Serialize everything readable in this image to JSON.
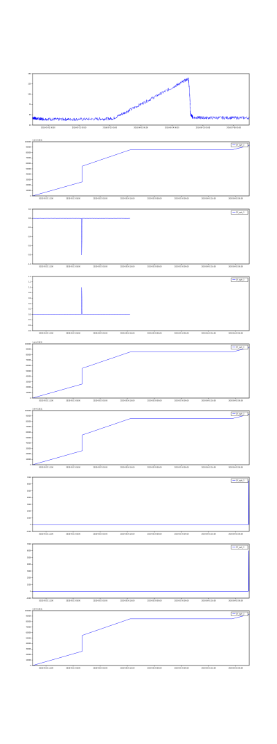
{
  "colors": {
    "series": "#0000ff",
    "axis": "#000000",
    "grid": "#999999"
  },
  "chart_data": [
    {
      "type": "line",
      "ylim": [
        10,
        180
      ],
      "ytick_labels": [
        "10",
        "40",
        "70",
        "100",
        "130",
        "160"
      ],
      "xtick_labels": [
        "2016-05-01 00:00",
        "2016-05-12 00:00",
        "2016-05-23 00:00",
        "2016-06-03 00:00",
        "2016-06-14 00:00",
        "2016-06-25 00:00",
        "2016-07-06 00:00"
      ],
      "legend": "",
      "series": [
        {
          "x": [
            0,
            0.02,
            0.05,
            0.12,
            0.2,
            0.3,
            0.37,
            0.45,
            0.55,
            0.65,
            0.72,
            0.73,
            0.74,
            0.8,
            0.9,
            1.0
          ],
          "values": [
            34,
            31,
            30,
            29,
            29,
            30,
            31,
            60,
            98,
            136,
            164,
            45,
            35,
            34,
            34,
            34
          ],
          "noise": 1.2
        }
      ]
    },
    {
      "type": "line",
      "ylim": [
        0,
        100000
      ],
      "corner_label": "1e6+2.5611",
      "ytick_labels": [
        "0",
        "10000",
        "20000",
        "30000",
        "40000",
        "50000",
        "60000",
        "70000",
        "80000",
        "90000",
        "100000"
      ],
      "xtick_labels": [
        "2020-05-21 12:00",
        "2020-05-23 08:00",
        "2020-05-25 00:00",
        "2020-05-26 16:00",
        "2020-05-28 08:00",
        "2020-05-30 00:00",
        "2020-06-01 16:00",
        "2020-06-03 08:00"
      ],
      "legend": "C4_sgle_3",
      "series": [
        {
          "x": [
            0,
            0.23,
            0.23,
            0.45,
            0.45,
            0.92,
            1.0
          ],
          "values": [
            0,
            26000,
            55000,
            85000,
            85000,
            85000,
            93000
          ],
          "noise": 0
        }
      ]
    },
    {
      "type": "line",
      "ylim": [
        -1.0,
        0.2
      ],
      "ytick_labels": [
        "-1.0",
        "-0.8",
        "-0.6",
        "-0.4",
        "-0.2",
        "0.0",
        "0.2"
      ],
      "xtick_labels": [
        "2020-05-21 12:00",
        "2020-05-23 08:00",
        "2020-05-25 00:00",
        "2020-05-26 16:00",
        "2020-05-28 08:00",
        "2020-05-30 00:00",
        "2020-06-01 16:00",
        "2020-06-03 08:00"
      ],
      "legend": "C4_sgle_3",
      "series": [
        {
          "x": [
            0,
            0.22,
            0.225,
            0.226,
            0.23,
            0.45
          ],
          "values": [
            0,
            0,
            0,
            -0.8,
            0,
            0
          ],
          "noise": 0.03
        }
      ]
    },
    {
      "type": "line",
      "ylim": [
        -0.6,
        1.4
      ],
      "ytick_labels": [
        "-0.6",
        "-0.4",
        "-0.2",
        "0.0",
        "0.2",
        "0.4",
        "0.6",
        "0.8",
        "1.0",
        "1.2",
        "1.4"
      ],
      "xtick_labels": [
        "2020-05-21 12:00",
        "2020-05-23 08:00",
        "2020-05-25 00:00",
        "2020-05-26 16:00",
        "2020-05-28 08:00",
        "2020-05-30 00:00",
        "2020-06-01 16:00",
        "2020-06-03 08:00"
      ],
      "legend": "C4_sgle_3",
      "series": [
        {
          "x": [
            0,
            0.22,
            0.225,
            0.226,
            0.23,
            0.45
          ],
          "values": [
            0,
            0,
            0,
            1.0,
            0,
            0
          ],
          "noise": 0.03
        }
      ]
    },
    {
      "type": "line",
      "ylim": [
        0,
        100000
      ],
      "corner_label": "1e6+2.5611",
      "ytick_labels": [
        "0",
        "10000",
        "20000",
        "30000",
        "40000",
        "50000",
        "60000",
        "70000",
        "80000",
        "90000",
        "100000"
      ],
      "xtick_labels": [
        "2020-05-21 12:00",
        "2020-05-23 08:00",
        "2020-05-25 00:00",
        "2020-05-26 16:00",
        "2020-05-28 08:00",
        "2020-05-30 00:00",
        "2020-06-01 16:00",
        "2020-06-03 08:00"
      ],
      "legend": "C4_sgle_3",
      "series": [
        {
          "x": [
            0,
            0.23,
            0.23,
            0.45,
            0.45,
            0.92,
            1.0
          ],
          "values": [
            0,
            26000,
            55000,
            85000,
            85000,
            85000,
            93000
          ],
          "noise": 0
        }
      ]
    },
    {
      "type": "line",
      "ylim": [
        0,
        100000
      ],
      "corner_label": "1e6+2.5611",
      "ytick_labels": [
        "0",
        "10000",
        "20000",
        "30000",
        "40000",
        "50000",
        "60000",
        "70000",
        "80000",
        "90000",
        "100000"
      ],
      "xtick_labels": [
        "2020-05-21 12:00",
        "2020-05-23 08:00",
        "2020-05-25 00:00",
        "2020-05-26 16:00",
        "2020-05-28 08:00",
        "2020-05-30 00:00",
        "2020-06-01 16:00",
        "2020-06-03 08:00"
      ],
      "legend": "C4_sgle_3",
      "series": [
        {
          "x": [
            0,
            0.23,
            0.23,
            0.45,
            0.45,
            0.92,
            1.0
          ],
          "values": [
            0,
            26000,
            55000,
            85000,
            85000,
            85000,
            93000
          ],
          "noise": 0
        }
      ]
    },
    {
      "type": "line",
      "ylim": [
        -1000,
        7000
      ],
      "ytick_labels": [
        "-1000",
        "0",
        "1000",
        "2000",
        "3000",
        "4000",
        "5000",
        "6000",
        "7000"
      ],
      "xtick_labels": [
        "2020-05-21 12:00",
        "2020-05-23 08:00",
        "2020-05-25 00:00",
        "2020-05-26 16:00",
        "2020-05-28 08:00",
        "2020-05-30 00:00",
        "2020-06-01 16:00",
        "2020-06-03 08:00"
      ],
      "legend": "C4_sgle_3",
      "series": [
        {
          "x": [
            0,
            0.995,
            0.996,
            0.998,
            1.0
          ],
          "values": [
            0,
            0,
            6500,
            0,
            0
          ],
          "noise": 0
        }
      ]
    },
    {
      "type": "line",
      "ylim": [
        -1000,
        7000
      ],
      "ytick_labels": [
        "-1000",
        "0",
        "1000",
        "2000",
        "3000",
        "4000",
        "5000",
        "6000",
        "7000"
      ],
      "xtick_labels": [
        "2020-05-21 12:00",
        "2020-05-23 08:00",
        "2020-05-25 00:00",
        "2020-05-26 16:00",
        "2020-05-28 08:00",
        "2020-05-30 00:00",
        "2020-06-01 16:00",
        "2020-06-03 08:00"
      ],
      "legend": "C4_sgle_3",
      "series": [
        {
          "x": [
            0,
            0.995,
            0.996,
            0.998,
            1.0
          ],
          "values": [
            0,
            0,
            6000,
            0,
            0
          ],
          "noise": 0
        }
      ]
    },
    {
      "type": "line",
      "ylim": [
        0,
        100000
      ],
      "corner_label": "1e6+2.5611",
      "ytick_labels": [
        "0",
        "10000",
        "20000",
        "30000",
        "40000",
        "50000",
        "60000",
        "70000",
        "80000",
        "90000",
        "100000"
      ],
      "xtick_labels": [
        "2020-05-21 12:00",
        "2020-05-23 08:00",
        "2020-05-25 00:00",
        "2020-05-26 16:00",
        "2020-05-28 08:00",
        "2020-05-30 00:00",
        "2020-06-01 16:00",
        "2020-06-03 08:00"
      ],
      "legend": "C4_sgle_3",
      "series": [
        {
          "x": [
            0,
            0.23,
            0.23,
            0.45,
            0.45,
            0.92,
            1.0
          ],
          "values": [
            0,
            26000,
            55000,
            85000,
            85000,
            85000,
            93000
          ],
          "noise": 0
        }
      ]
    }
  ]
}
